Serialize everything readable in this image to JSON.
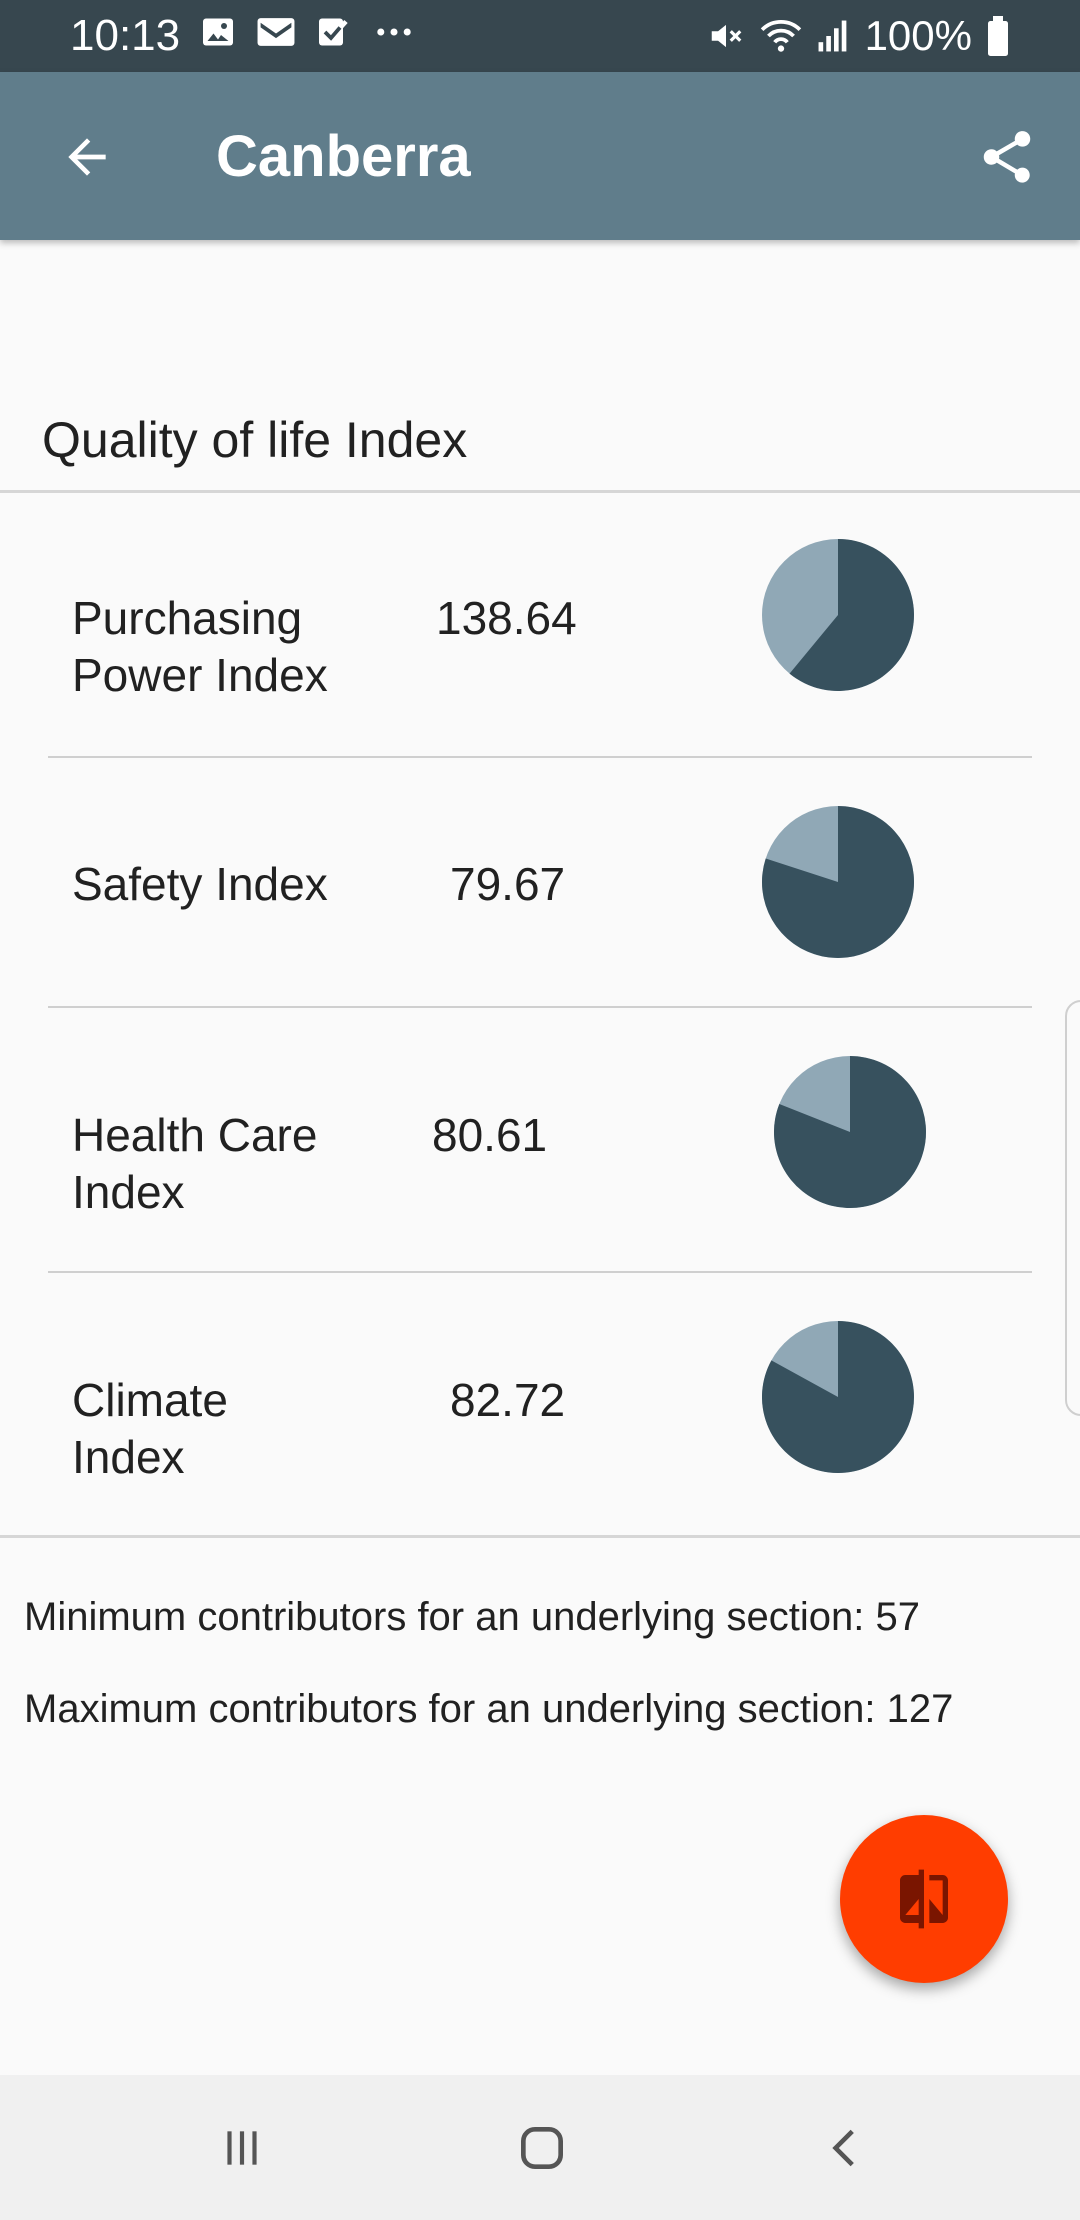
{
  "status_bar": {
    "time": "10:13",
    "battery": "100%",
    "left_icons": [
      "image-icon",
      "gmail-icon",
      "check-icon",
      "more-icon"
    ],
    "right_icons": [
      "mute-icon",
      "wifi-icon",
      "signal-icon",
      "battery-icon"
    ]
  },
  "app_bar": {
    "title": "Canberra",
    "back_icon": "arrow-back-icon",
    "share_icon": "share-icon",
    "background": "#607d8b"
  },
  "section": {
    "title": "Quality of life Index"
  },
  "indices": [
    {
      "label_line1": "Purchasing",
      "label_line2": "Power Index",
      "value": "138.64",
      "fill": 0.61
    },
    {
      "label_line1": "Safety Index",
      "label_line2": "",
      "value": "79.67",
      "fill": 0.8
    },
    {
      "label_line1": "Health Care",
      "label_line2": "Index",
      "value": "80.61",
      "fill": 0.81
    },
    {
      "label_line1": "Climate",
      "label_line2": "Index",
      "value": "82.72",
      "fill": 0.83
    }
  ],
  "stats": {
    "min_label": "Minimum contributors for an underlying section:",
    "min_value": "57",
    "max_label": "Maximum contributors for an underlying section:",
    "max_value": "127"
  },
  "fab": {
    "icon": "compare-icon",
    "color": "#ff3d00"
  },
  "colors": {
    "pie_dark": "#37515e",
    "pie_light": "#90a8b6"
  },
  "nav": {
    "icons": [
      "recents-icon",
      "home-icon",
      "back-icon"
    ]
  }
}
